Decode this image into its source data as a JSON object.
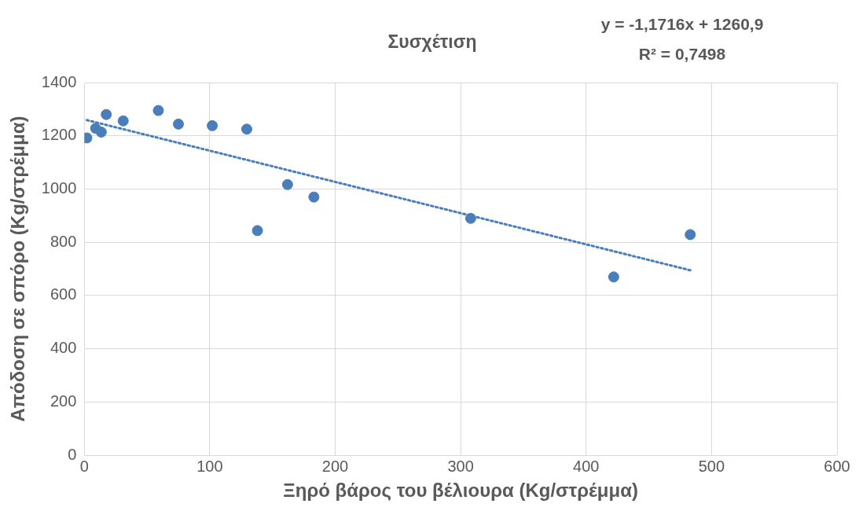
{
  "chart_data": {
    "type": "scatter",
    "title": "Συσχέτιση",
    "xlabel": "Ξηρό βάρος του βέλιουρα (Kg/στρέμμα)",
    "ylabel": "Απόδοση σε σπόρο (Kg/στρέμμα)",
    "annotations": [
      "y = -1,1716x + 1260,9",
      "R² = 0,7498"
    ],
    "series": [
      {
        "color": "#4a7ebb",
        "x": [
          2,
          9,
          13.5,
          17.5,
          31,
          59,
          75,
          102,
          129.5,
          138,
          162,
          183,
          308,
          422,
          483
        ],
        "values": [
          1192,
          1228,
          1214,
          1280,
          1256,
          1295,
          1244,
          1238,
          1225,
          844,
          1017,
          970,
          890,
          670,
          829
        ]
      },
      {
        "type": "line",
        "color": "#4a7ebb",
        "line_style": "dotted",
        "marker": "none",
        "x": [
          2,
          483
        ],
        "values": [
          1259,
          695
        ]
      }
    ],
    "marker": "circle",
    "xlim": [
      0,
      600
    ],
    "xticks": [
      0,
      100,
      200,
      300,
      400,
      500,
      600
    ],
    "ylim": [
      0,
      1400
    ],
    "yticks": [
      0,
      200,
      400,
      600,
      800,
      1000,
      1200,
      1400
    ],
    "grid": true,
    "legend": false
  }
}
